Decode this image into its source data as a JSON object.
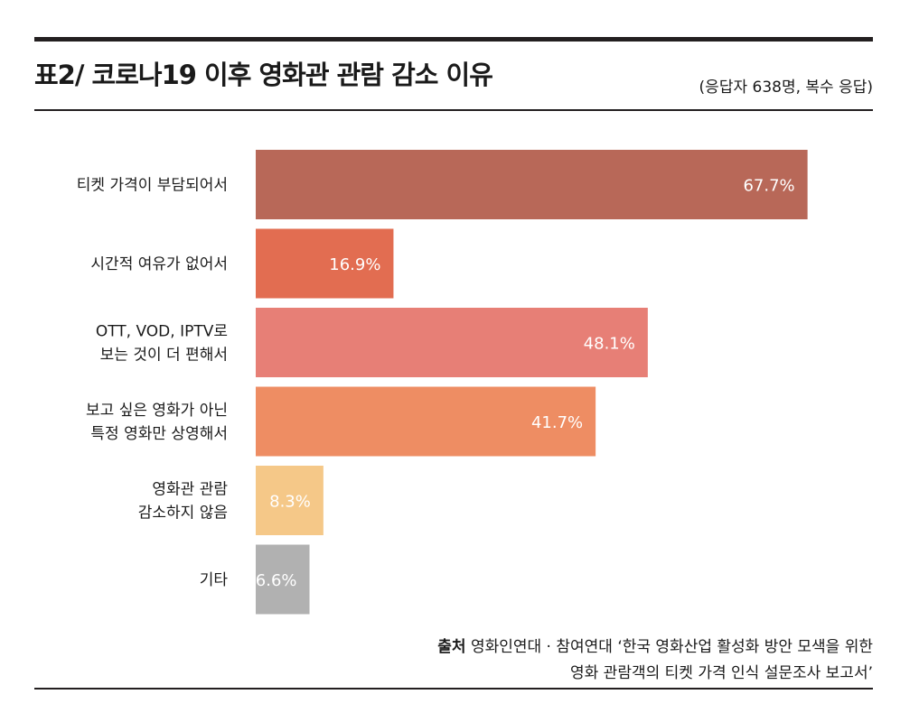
{
  "header": {
    "title": "표2/ 코로나19 이후 영화관 관람 감소 이유",
    "note": "(응답자 638명, 복수 응답)"
  },
  "source": {
    "label": "출처",
    "line1": "영화인연대 · 참여연대 ‘한국 영화산업 활성화 방안 모색을 위한",
    "line2": "영화 관람객의 티켓 가격 인식 설문조사 보고서’"
  },
  "chart_data": {
    "type": "bar",
    "orientation": "horizontal",
    "title": "표2/ 코로나19 이후 영화관 관람 감소 이유",
    "unit": "%",
    "xlim": [
      0,
      100
    ],
    "grid": false,
    "categories": [
      [
        "티켓 가격이 부담되어서"
      ],
      [
        "시간적 여유가 없어서"
      ],
      [
        "OTT, VOD, IPTV로",
        "보는 것이 더 편해서"
      ],
      [
        "보고 싶은 영화가 아닌",
        "특정 영화만 상영해서"
      ],
      [
        "영화관 관람",
        "감소하지 않음"
      ],
      [
        "기타"
      ]
    ],
    "values": [
      67.7,
      16.9,
      48.1,
      41.7,
      8.3,
      6.6
    ],
    "value_labels": [
      "67.7%",
      "16.9%",
      "48.1%",
      "41.7%",
      "8.3%",
      "6.6%"
    ],
    "colors": [
      "#b86858",
      "#e26d51",
      "#e77f76",
      "#ee8d63",
      "#f5c888",
      "#b1b1b1"
    ]
  }
}
